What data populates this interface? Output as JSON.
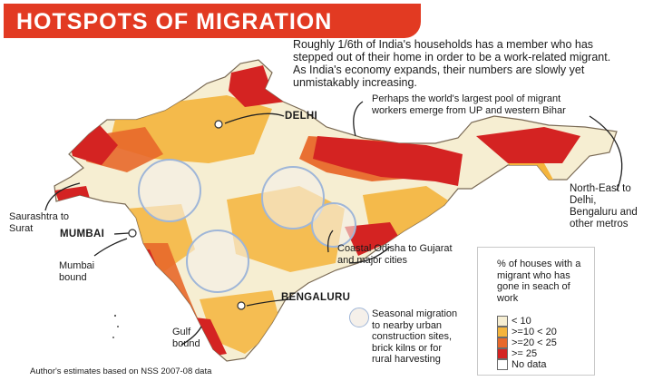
{
  "title": "HOTSPOTS OF MIGRATION",
  "intro_text": "Roughly 1/6th of India's households has a member who has stepped out of their home in order to be a work-related migrant. As India's economy expands, their numbers are slowly yet unmistakably increasing.",
  "callouts": {
    "up_bihar": "Perhaps the world's largest pool of migrant workers emerge from UP and western Bihar",
    "north_east": "North-East to Delhi, Bengaluru and other metros",
    "saurashtra": "Saurashtra to Surat",
    "mumbai_bound": "Mumbai bound",
    "gulf_bound": "Gulf bound",
    "coastal_odisha": "Coastal Odisha to Gujarat and major cities",
    "seasonal": "Seasonal migration to nearby urban construction sites, brick kilns or for rural harvesting"
  },
  "cities": {
    "delhi": "DELHI",
    "mumbai": "MUMBAI",
    "bengaluru": "BENGALURU"
  },
  "legend": {
    "title": "% of houses with a migrant who has gone in seach of work",
    "items": [
      {
        "label": "< 10",
        "color": "#f6eed2"
      },
      {
        "label": ">=10 < 20",
        "color": "#f4b43c"
      },
      {
        "label": ">=20 < 25",
        "color": "#e8682a"
      },
      {
        "label": ">= 25",
        "color": "#d42322"
      },
      {
        "label": "No data",
        "color": "#ffffff"
      }
    ]
  },
  "colors": {
    "title_bar": "#e23a22",
    "border": "#7a6a55",
    "seasonal_circle": "#9fb6d8"
  },
  "footer": "Author's estimates based on NSS 2007-08 data"
}
